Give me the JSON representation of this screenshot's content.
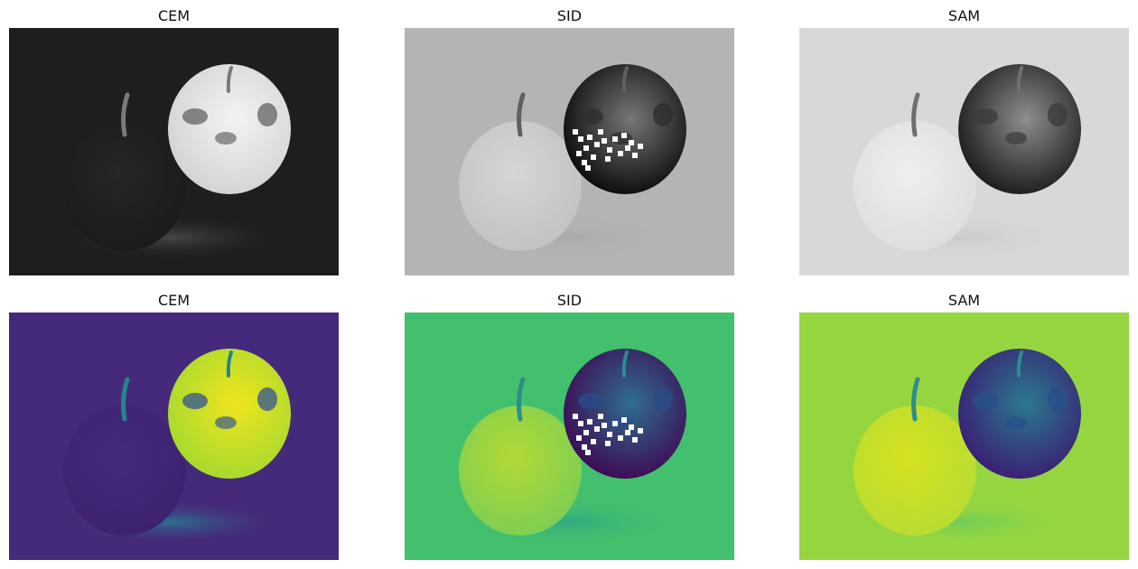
{
  "figure": {
    "rows": [
      {
        "colormap": "gray",
        "panels": [
          {
            "title": "CEM",
            "style": {
              "bg": "#1e1e1e",
              "apple_left": "#262626",
              "apple_left_edge": "#1b1b1b",
              "apple_right": "#d4d4d4",
              "apple_right_hi": "#f3f3f3",
              "spots": "#6a6a6a",
              "shadow": "#4b4b4b",
              "stem": "#7a7a7a",
              "speckle": "none"
            }
          },
          {
            "title": "SID",
            "style": {
              "bg": "#b4b4b4",
              "apple_left": "#d6d6d6",
              "apple_left_edge": "#c3c3c3",
              "apple_right": "#0c0c0c",
              "apple_right_hi": "#777777",
              "spots": "#2e2e2e",
              "shadow": "#a9a9a9",
              "stem": "#5f5f5f",
              "speckle": "#ffffff"
            }
          },
          {
            "title": "SAM",
            "style": {
              "bg": "#d8d8d8",
              "apple_left": "#efefef",
              "apple_left_edge": "#dedede",
              "apple_right": "#1c1c1c",
              "apple_right_hi": "#8e8e8e",
              "spots": "#3c3c3c",
              "shadow": "#c9c9c9",
              "stem": "#6f6f6f",
              "speckle": "none"
            }
          }
        ]
      },
      {
        "colormap": "viridis",
        "panels": [
          {
            "title": "CEM",
            "style": {
              "bg": "#45297a",
              "apple_left": "#442b7c",
              "apple_left_edge": "#3e2272",
              "apple_right": "#a7da2e",
              "apple_right_hi": "#f0e51f",
              "spots": "#3b5b8d",
              "shadow": "#2a788e",
              "stem": "#25848e",
              "speckle": "none"
            }
          },
          {
            "title": "SID",
            "style": {
              "bg": "#42c06e",
              "apple_left": "#b4d935",
              "apple_left_edge": "#7fcf52",
              "apple_right": "#3d0b55",
              "apple_right_hi": "#2f6e8e",
              "spots": "#2b4b86",
              "shadow": "#2ea785",
              "stem": "#2d8c8c",
              "speckle": "#ffffff"
            }
          },
          {
            "title": "SAM",
            "style": {
              "bg": "#95d640",
              "apple_left": "#d5e21e",
              "apple_left_edge": "#b9dc33",
              "apple_right": "#3a1f73",
              "apple_right_hi": "#2b7a8e",
              "spots": "#27508b",
              "shadow": "#6ccd5a",
              "stem": "#2d8c8c",
              "speckle": "none"
            }
          }
        ]
      }
    ]
  }
}
